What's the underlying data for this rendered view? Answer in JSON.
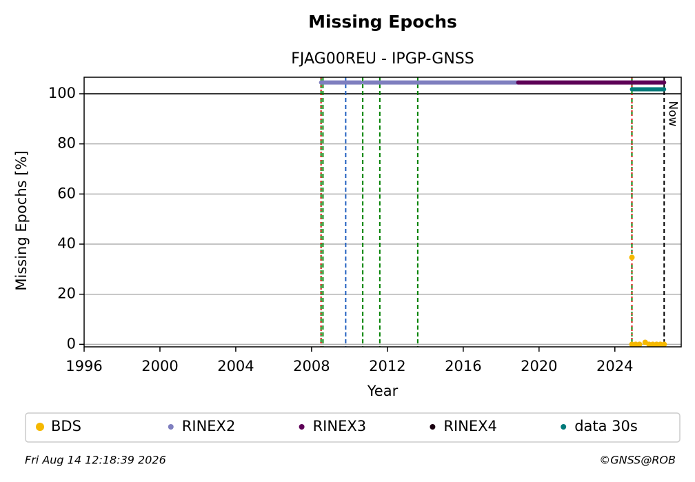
{
  "chart_data": {
    "type": "line",
    "title": "Missing Epochs",
    "subtitle": "FJAG00REU - IPGP-GNSS",
    "xlabel": "Year",
    "ylabel": "Missing Epochs [%]",
    "xlim": [
      1996,
      2027.5
    ],
    "xticks": [
      1996,
      2000,
      2004,
      2008,
      2012,
      2016,
      2020,
      2024
    ],
    "ylim": [
      -1,
      106.6
    ],
    "yticks": [
      0,
      20,
      40,
      60,
      80,
      100
    ],
    "grid": true,
    "hline": 100,
    "vlines": [
      {
        "x": 2008.5,
        "color": "#008000",
        "style": "dashed"
      },
      {
        "x": 2008.6,
        "color": "#008000",
        "style": "dashed"
      },
      {
        "x": 2008.5,
        "color": "#e00000",
        "style": "dotted"
      },
      {
        "x": 2009.8,
        "color": "#1f5fbf",
        "style": "dashed"
      },
      {
        "x": 2010.7,
        "color": "#008000",
        "style": "dashed"
      },
      {
        "x": 2011.6,
        "color": "#008000",
        "style": "dashed"
      },
      {
        "x": 2013.6,
        "color": "#008000",
        "style": "dashed"
      },
      {
        "x": 2024.9,
        "color": "#008000",
        "style": "dashed"
      },
      {
        "x": 2024.9,
        "color": "#e00000",
        "style": "dotted"
      },
      {
        "x": 2026.6,
        "color": "#000000",
        "style": "dashed",
        "label": "Now"
      }
    ],
    "series": [
      {
        "name": "BDS",
        "color": "#f5b800",
        "mode": "points",
        "x": [
          2024.9,
          2024.9,
          2025.1,
          2025.3,
          2025.6,
          2025.8,
          2026.0,
          2026.2,
          2026.4,
          2026.6
        ],
        "values": [
          34.7,
          0,
          0,
          0,
          0.8,
          0,
          0,
          0,
          0,
          0
        ]
      },
      {
        "name": "RINEX2",
        "color": "#7f7fbf",
        "mode": "line",
        "x": [
          2008.5,
          2010.6,
          2010.7,
          2010.8,
          2018.9
        ],
        "values": [
          104.5,
          104.5,
          null,
          104.5,
          104.5
        ]
      },
      {
        "name": "RINEX3",
        "color": "#5e0057",
        "mode": "line",
        "x": [
          2018.9,
          2026.6
        ],
        "values": [
          104.5,
          104.5
        ]
      },
      {
        "name": "RINEX4",
        "color": "#1a0010",
        "mode": "line",
        "x": [],
        "values": []
      },
      {
        "name": "data 30s",
        "color": "#007a7a",
        "mode": "line",
        "x": [
          2024.9,
          2026.6
        ],
        "values": [
          101.8,
          101.8
        ]
      }
    ],
    "footer_left": "Fri Aug 14 12:18:39 2026",
    "footer_right": "©GNSS@ROB"
  }
}
